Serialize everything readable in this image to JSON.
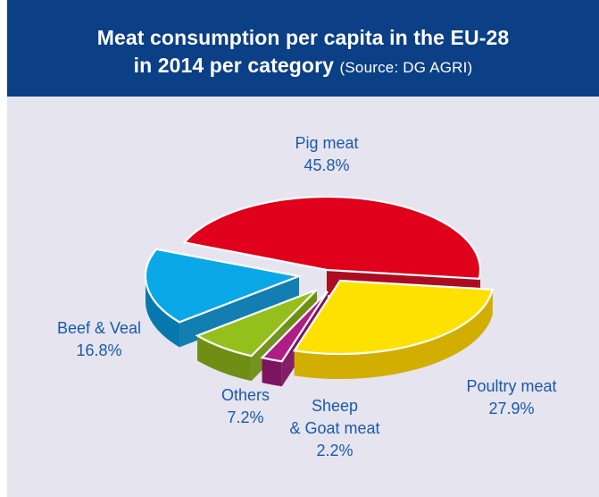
{
  "header": {
    "title_line1": "Meat consumption per capita in the EU-28",
    "title_line2_main": "in 2014 per category",
    "title_source": "(Source: DG AGRI)"
  },
  "chart_data": {
    "type": "pie",
    "title": "Meat consumption per capita in the EU-28 in 2014 per category",
    "subtitle": "(Source: DG AGRI)",
    "slices": [
      {
        "name": "Pig meat",
        "value": 45.8,
        "label": "45.8%",
        "color": "#e1001b",
        "side_color": "#a80016"
      },
      {
        "name": "Poultry meat",
        "value": 27.9,
        "label": "27.9%",
        "color": "#ffe100",
        "side_color": "#d2ae00"
      },
      {
        "name": "Sheep & Goat meat",
        "value": 2.2,
        "label": "2.2%",
        "color": "#b01d86",
        "side_color": "#7c145f"
      },
      {
        "name": "Others",
        "value": 7.2,
        "label": "7.2%",
        "color": "#95bf1b",
        "side_color": "#6f8e14"
      },
      {
        "name": "Beef & Veal",
        "value": 16.8,
        "label": "16.8%",
        "color": "#0aa8e6",
        "side_color": "#0678ad"
      }
    ]
  },
  "labels": [
    {
      "lines": [
        "Pig meat",
        "45.8%"
      ]
    },
    {
      "lines": [
        "Poultry meat",
        "27.9%"
      ]
    },
    {
      "lines": [
        "Sheep",
        "& Goat meat",
        "2.2%"
      ]
    },
    {
      "lines": [
        "Others",
        "7.2%"
      ]
    },
    {
      "lines": [
        "Beef & Veal",
        "16.8%"
      ]
    }
  ]
}
